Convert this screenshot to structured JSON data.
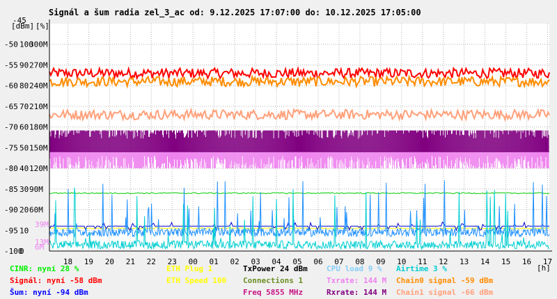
{
  "chart_data": {
    "type": "line",
    "title": "Signál a šum radia zel_3_ac od: 9.12.2025 17:07:00 do: 10.12.2025 17:05:00",
    "top_value": "-45",
    "unit_labels": [
      "[dBm]",
      "[%]"
    ],
    "y_axis": {
      "dbm": [
        "-50",
        "-55",
        "-60",
        "-65",
        "-70",
        "-75",
        "-80",
        "-85",
        "-90",
        "-95",
        "-100"
      ],
      "pct": [
        "100",
        "90",
        "80",
        "70",
        "60",
        "50",
        "40",
        "30",
        "20",
        "10",
        "0"
      ],
      "rate": [
        "300M",
        "270M",
        "240M",
        "210M",
        "180M",
        "150M",
        "120M",
        "90M",
        "60M"
      ],
      "rate_markers": [
        {
          "label": "39M",
          "value": 39,
          "color": "#ee82ee"
        },
        {
          "label": "13M",
          "value": 13,
          "color": "#ee82ee"
        },
        {
          "label": "6M",
          "value": 6,
          "color": "#ee82ee"
        }
      ],
      "ylim_dbm": [
        -100,
        -45
      ]
    },
    "x_axis": {
      "ticks": [
        "18",
        "19",
        "20",
        "21",
        "22",
        "23",
        "00",
        "01",
        "02",
        "03",
        "04",
        "05",
        "06",
        "07",
        "08",
        "09",
        "10",
        "11",
        "12",
        "13",
        "14",
        "15",
        "16",
        "17"
      ],
      "unit": "[h]",
      "range_hours": [
        17.1167,
        41.0833
      ]
    },
    "series": [
      {
        "name": "Signál",
        "color": "#ff0000",
        "base_dbm": -57,
        "spread": 1.2,
        "kind": "band"
      },
      {
        "name": "Chain0 signal",
        "color": "#ff8c00",
        "base_dbm": -59,
        "spread": 1.2,
        "kind": "band"
      },
      {
        "name": "Chain1 signal",
        "color": "#ffa07a",
        "base_dbm": -67,
        "spread": 1.2,
        "kind": "band"
      },
      {
        "name": "Txrate",
        "color": "#ee82ee",
        "base_mbps": 144,
        "low_mbps": 120,
        "kind": "bars"
      },
      {
        "name": "Rxrate",
        "color": "#800080",
        "base_mbps": 144,
        "high_mbps": 175,
        "kind": "bars"
      },
      {
        "name": "CINR",
        "color": "#00cc00",
        "base_pct": 28,
        "kind": "line"
      },
      {
        "name": "ETH Plug",
        "color": "#ffff00",
        "base_pct": 11,
        "kind": "line"
      },
      {
        "name": "Šum",
        "color": "#0000cd",
        "base_dbm": -94,
        "kind": "line"
      },
      {
        "name": "CPU load",
        "color": "#1e90ff",
        "base_pct": 9,
        "kind": "noise"
      },
      {
        "name": "Airtime",
        "color": "#00ced1",
        "base_pct": 3,
        "kind": "noise"
      }
    ]
  },
  "legend": {
    "col1": [
      {
        "text": "CINR: nyní 28 %",
        "color": "#00ee00"
      },
      {
        "text": "Signál: nyní -58 dBm",
        "color": "#ff0000"
      },
      {
        "text": "Šum: nyní -94 dBm",
        "color": "#0000ff"
      }
    ],
    "col2": [
      {
        "text": "ETH Plug 1",
        "color": "#ffff00"
      },
      {
        "text": "ETH Speed 100",
        "color": "#ffff00"
      }
    ],
    "col3": [
      {
        "text": "TxPower 24 dBm",
        "color": "#000000"
      },
      {
        "text": "Connections 1",
        "color": "#6b8e23"
      },
      {
        "text": "Freq 5855 MHz",
        "color": "#c71585"
      }
    ],
    "col4": [
      {
        "text": "CPU load 9 %",
        "color": "#87cefa"
      },
      {
        "text": "Txrate: 144 M",
        "color": "#ee82ee"
      },
      {
        "text": "Rxrate: 144 M",
        "color": "#800080"
      }
    ],
    "col5": [
      {
        "text": "Airtime 3 %",
        "color": "#00ced1"
      },
      {
        "text": "Chain0 signal -59 dBm",
        "color": "#ff8c00"
      },
      {
        "text": "Chain1 signal -66 dBm",
        "color": "#ffa07a"
      }
    ]
  }
}
